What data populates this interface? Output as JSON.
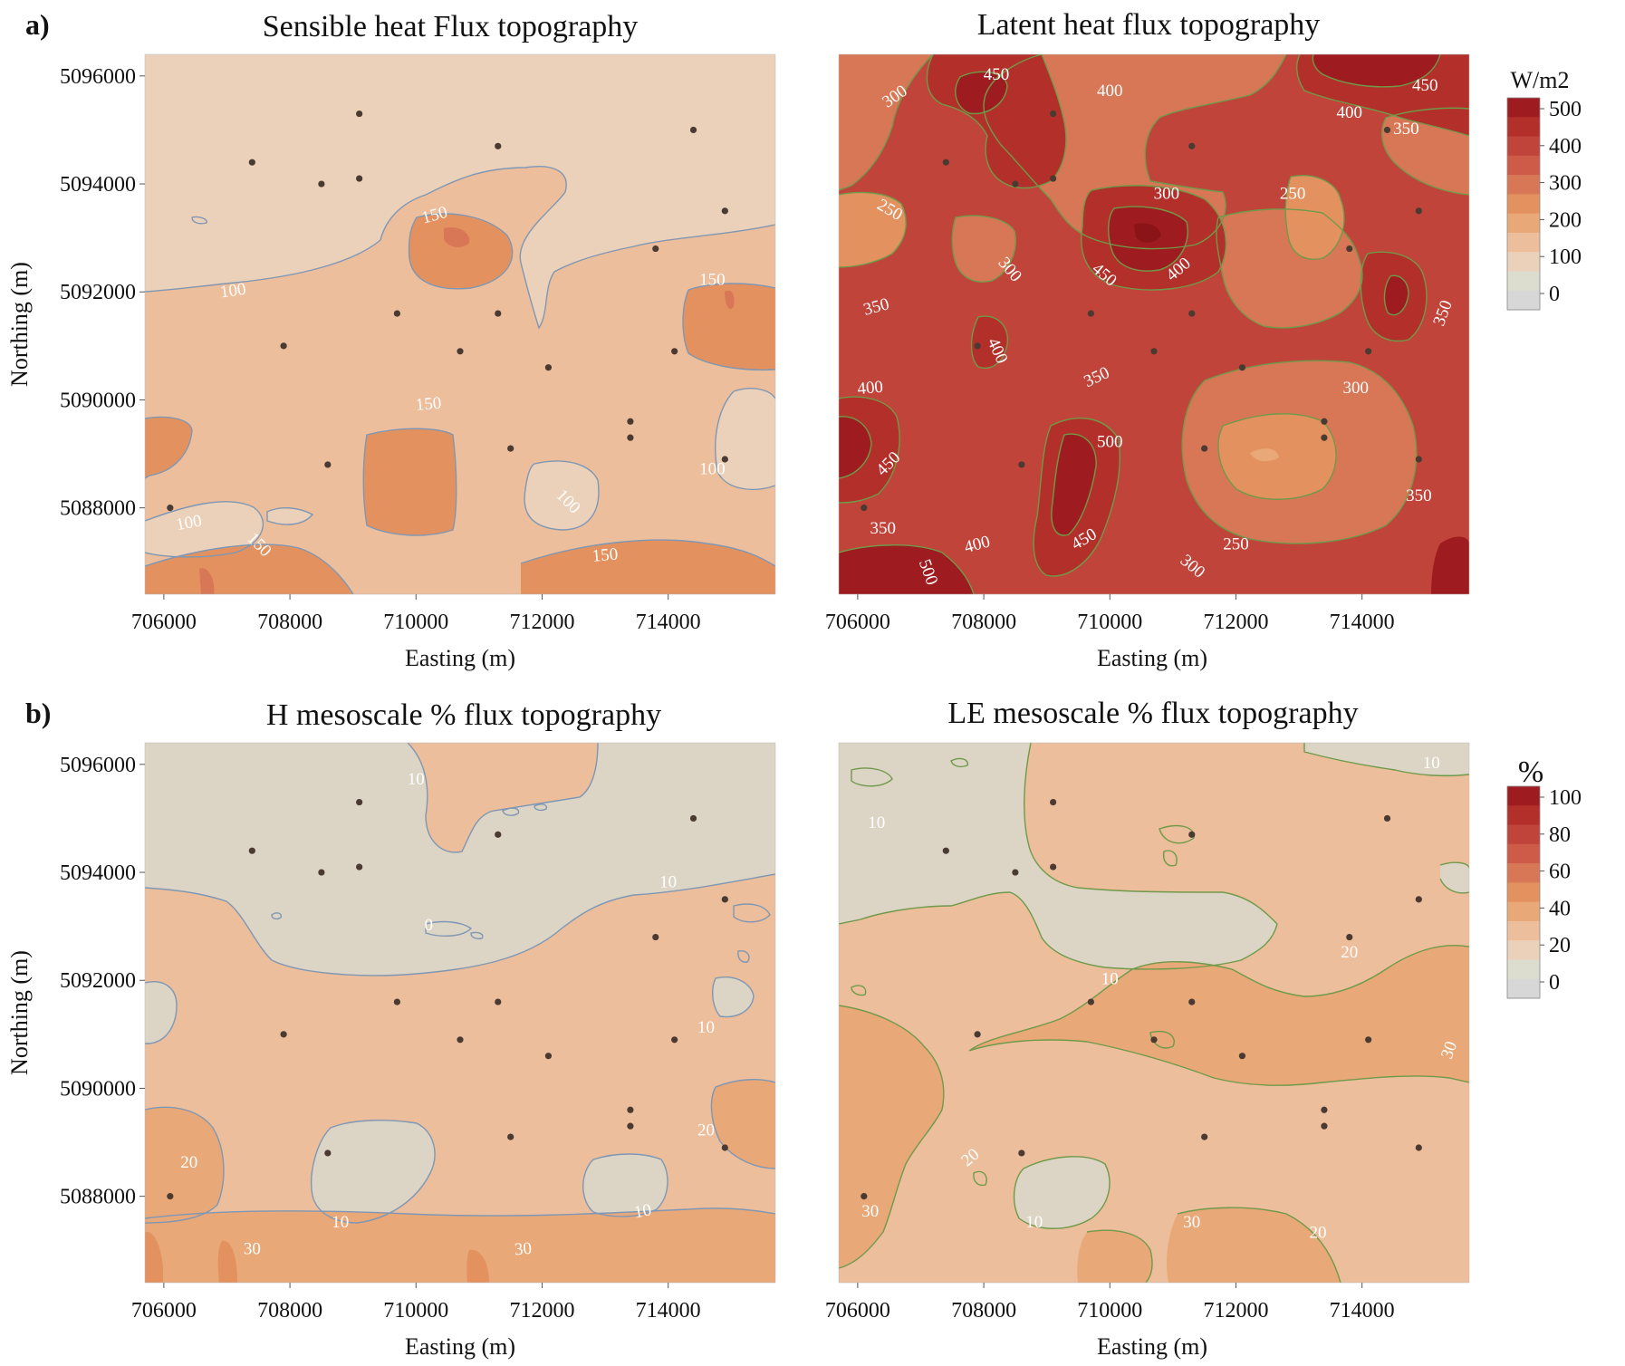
{
  "figure": {
    "panel_labels": [
      "a)",
      "b)"
    ]
  },
  "colors": {
    "contour_line_h": "#7f97b4",
    "contour_line_le": "#6f9a4a",
    "station": "#4a3a32",
    "contour_label": "#ffffff"
  },
  "colorbars": [
    {
      "unit": "W/m2",
      "ticks": [
        "500",
        "400",
        "300",
        "200",
        "100",
        "0"
      ],
      "colors": [
        "#9e1b1f",
        "#b23029",
        "#c0443a",
        "#cd5b48",
        "#d87755",
        "#e3925f",
        "#e8a878",
        "#ecbe9b",
        "#ebd1b9",
        "#dcdccf",
        "#d7d7d7"
      ]
    },
    {
      "unit": "%",
      "ticks": [
        "100",
        "80",
        "60",
        "40",
        "20",
        "0"
      ],
      "colors": [
        "#9e1b1f",
        "#b23029",
        "#c0443a",
        "#cd5b48",
        "#d87755",
        "#e3925f",
        "#e8a878",
        "#ecbe9b",
        "#ebd1b9",
        "#dcdccf",
        "#d7d7d7"
      ]
    }
  ],
  "chart_data": [
    {
      "type": "contour",
      "panel": "a)",
      "title": "Sensible heat Flux topography",
      "xlabel": "Easting (m)",
      "ylabel": "Northing (m)",
      "xlim": [
        705700,
        715700
      ],
      "ylim": [
        5086400,
        5096400
      ],
      "xticks": [
        706000,
        708000,
        710000,
        712000,
        714000
      ],
      "yticks": [
        5088000,
        5090000,
        5092000,
        5094000,
        5096000
      ],
      "colorbar": "W/m2",
      "contour_labels": [
        {
          "text": "150",
          "x": 710300,
          "y": 5093400,
          "angle": -15
        },
        {
          "text": "100",
          "x": 707100,
          "y": 5092000,
          "angle": -8
        },
        {
          "text": "150",
          "x": 714700,
          "y": 5092200,
          "angle": 0
        },
        {
          "text": "150",
          "x": 710200,
          "y": 5089900,
          "angle": -5
        },
        {
          "text": "100",
          "x": 714700,
          "y": 5088700,
          "angle": 0
        },
        {
          "text": "100",
          "x": 712400,
          "y": 5088100,
          "angle": 45
        },
        {
          "text": "100",
          "x": 706400,
          "y": 5087700,
          "angle": -10
        },
        {
          "text": "150",
          "x": 707500,
          "y": 5087300,
          "angle": 45
        },
        {
          "text": "150",
          "x": 713000,
          "y": 5087100,
          "angle": -5
        }
      ]
    },
    {
      "type": "contour",
      "panel": "a)",
      "title": "Latent heat  flux topography",
      "xlabel": "Easting (m)",
      "ylabel": "",
      "xlim": [
        705700,
        715700
      ],
      "ylim": [
        5086400,
        5096400
      ],
      "xticks": [
        706000,
        708000,
        710000,
        712000,
        714000
      ],
      "yticks": [],
      "colorbar": "W/m2",
      "contour_labels": [
        {
          "text": "450",
          "x": 708200,
          "y": 5096000,
          "angle": 0
        },
        {
          "text": "400",
          "x": 710000,
          "y": 5095700,
          "angle": 0
        },
        {
          "text": "300",
          "x": 706600,
          "y": 5095600,
          "angle": -35
        },
        {
          "text": "450",
          "x": 715000,
          "y": 5095800,
          "angle": 0
        },
        {
          "text": "400",
          "x": 713800,
          "y": 5095300,
          "angle": 0
        },
        {
          "text": "350",
          "x": 714700,
          "y": 5095000,
          "angle": 0
        },
        {
          "text": "300",
          "x": 710900,
          "y": 5093800,
          "angle": 0
        },
        {
          "text": "250",
          "x": 712900,
          "y": 5093800,
          "angle": 0
        },
        {
          "text": "250",
          "x": 706500,
          "y": 5093500,
          "angle": 30
        },
        {
          "text": "300",
          "x": 708400,
          "y": 5092400,
          "angle": 50
        },
        {
          "text": "450",
          "x": 709900,
          "y": 5092300,
          "angle": 40
        },
        {
          "text": "400",
          "x": 711100,
          "y": 5092400,
          "angle": -40
        },
        {
          "text": "350",
          "x": 706300,
          "y": 5091700,
          "angle": -15
        },
        {
          "text": "350",
          "x": 715300,
          "y": 5091600,
          "angle": -70
        },
        {
          "text": "400",
          "x": 708200,
          "y": 5090900,
          "angle": 65
        },
        {
          "text": "350",
          "x": 709800,
          "y": 5090400,
          "angle": -25
        },
        {
          "text": "400",
          "x": 706200,
          "y": 5090200,
          "angle": -5
        },
        {
          "text": "300",
          "x": 713900,
          "y": 5090200,
          "angle": 0
        },
        {
          "text": "500",
          "x": 710000,
          "y": 5089200,
          "angle": 0
        },
        {
          "text": "450",
          "x": 706500,
          "y": 5088800,
          "angle": -45
        },
        {
          "text": "350",
          "x": 714900,
          "y": 5088200,
          "angle": 0
        },
        {
          "text": "350",
          "x": 706400,
          "y": 5087600,
          "angle": 0
        },
        {
          "text": "400",
          "x": 707900,
          "y": 5087300,
          "angle": -15
        },
        {
          "text": "450",
          "x": 709600,
          "y": 5087400,
          "angle": -30
        },
        {
          "text": "250",
          "x": 712000,
          "y": 5087300,
          "angle": 0
        },
        {
          "text": "300",
          "x": 711300,
          "y": 5086900,
          "angle": 40
        },
        {
          "text": "500",
          "x": 707100,
          "y": 5086800,
          "angle": 70
        }
      ]
    },
    {
      "type": "contour",
      "panel": "b)",
      "title": "H mesoscale % flux  topography",
      "xlabel": "Easting (m)",
      "ylabel": "Northing (m)",
      "xlim": [
        705700,
        715700
      ],
      "ylim": [
        5086400,
        5096400
      ],
      "xticks": [
        706000,
        708000,
        710000,
        712000,
        714000
      ],
      "yticks": [
        5088000,
        5090000,
        5092000,
        5094000,
        5096000
      ],
      "colorbar": "%",
      "contour_labels": [
        {
          "text": "10",
          "x": 710000,
          "y": 5095700,
          "angle": 0
        },
        {
          "text": "10",
          "x": 714000,
          "y": 5093800,
          "angle": 0
        },
        {
          "text": "0",
          "x": 710200,
          "y": 5093000,
          "angle": 0
        },
        {
          "text": "10",
          "x": 714600,
          "y": 5091100,
          "angle": 0
        },
        {
          "text": "20",
          "x": 714600,
          "y": 5089200,
          "angle": 0
        },
        {
          "text": "20",
          "x": 706400,
          "y": 5088600,
          "angle": 0
        },
        {
          "text": "10",
          "x": 713600,
          "y": 5087700,
          "angle": -10
        },
        {
          "text": "10",
          "x": 708800,
          "y": 5087500,
          "angle": 0
        },
        {
          "text": "30",
          "x": 707400,
          "y": 5087000,
          "angle": 0
        },
        {
          "text": "30",
          "x": 711700,
          "y": 5087000,
          "angle": -5
        }
      ]
    },
    {
      "type": "contour",
      "panel": "b)",
      "title": "LE  mesoscale % flux topography",
      "xlabel": "Easting (m)",
      "ylabel": "",
      "xlim": [
        705700,
        715700
      ],
      "ylim": [
        5086400,
        5096400
      ],
      "xticks": [
        706000,
        708000,
        710000,
        712000,
        714000
      ],
      "yticks": [],
      "colorbar": "%",
      "contour_labels": [
        {
          "text": "10",
          "x": 715100,
          "y": 5096000,
          "angle": 0
        },
        {
          "text": "10",
          "x": 706300,
          "y": 5094900,
          "angle": 0
        },
        {
          "text": "20",
          "x": 713800,
          "y": 5092500,
          "angle": 0
        },
        {
          "text": "10",
          "x": 710000,
          "y": 5092000,
          "angle": 0
        },
        {
          "text": "30",
          "x": 715400,
          "y": 5090700,
          "angle": -70
        },
        {
          "text": "20",
          "x": 707800,
          "y": 5088700,
          "angle": -40
        },
        {
          "text": "30",
          "x": 706200,
          "y": 5087700,
          "angle": 0
        },
        {
          "text": "10",
          "x": 708800,
          "y": 5087500,
          "angle": 0
        },
        {
          "text": "30",
          "x": 711300,
          "y": 5087500,
          "angle": 0
        },
        {
          "text": "20",
          "x": 713300,
          "y": 5087300,
          "angle": 0
        }
      ]
    }
  ],
  "stations": [
    {
      "x": 709100,
      "y": 5095300
    },
    {
      "x": 714400,
      "y": 5095000
    },
    {
      "x": 711300,
      "y": 5094700
    },
    {
      "x": 707400,
      "y": 5094400
    },
    {
      "x": 709100,
      "y": 5094100
    },
    {
      "x": 708500,
      "y": 5094000
    },
    {
      "x": 714900,
      "y": 5093500
    },
    {
      "x": 713800,
      "y": 5092800
    },
    {
      "x": 709700,
      "y": 5091600
    },
    {
      "x": 711300,
      "y": 5091600
    },
    {
      "x": 707900,
      "y": 5091000
    },
    {
      "x": 710700,
      "y": 5090900
    },
    {
      "x": 714100,
      "y": 5090900
    },
    {
      "x": 712100,
      "y": 5090600
    },
    {
      "x": 713400,
      "y": 5089600
    },
    {
      "x": 713400,
      "y": 5089300
    },
    {
      "x": 711500,
      "y": 5089100
    },
    {
      "x": 714900,
      "y": 5088900
    },
    {
      "x": 708600,
      "y": 5088800
    },
    {
      "x": 706100,
      "y": 5088000
    }
  ]
}
